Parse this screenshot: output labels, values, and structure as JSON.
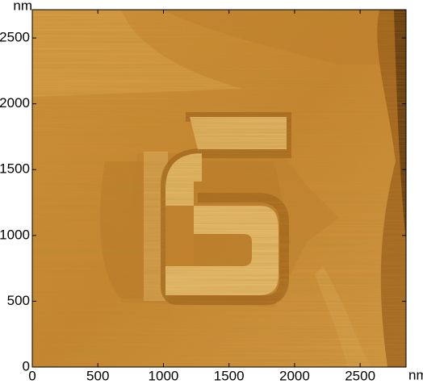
{
  "chart_data": {
    "type": "image",
    "x_label": "nm",
    "y_label": "nm",
    "xlim": [
      0,
      2850
    ],
    "ylim": [
      0,
      2715
    ],
    "xticks": [
      0,
      500,
      1000,
      1500,
      2000,
      2500
    ],
    "yticks": [
      0,
      500,
      1000,
      1500,
      2000,
      2500
    ]
  }
}
